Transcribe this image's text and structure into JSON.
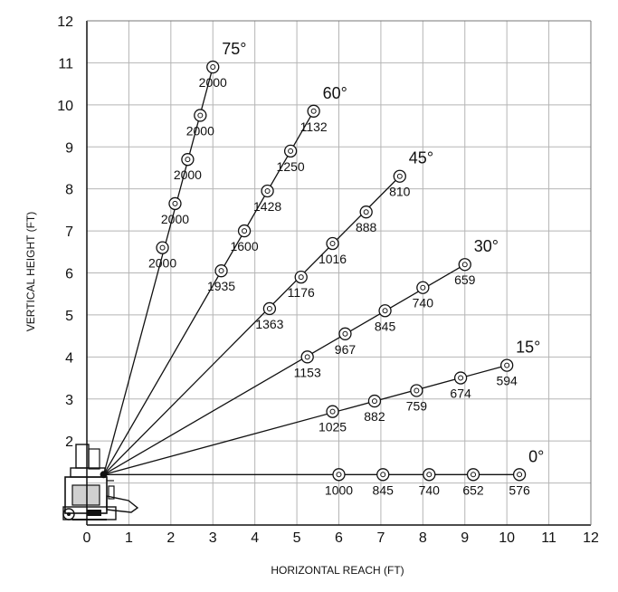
{
  "chart_data": {
    "type": "line",
    "title": "",
    "xlabel": "HORIZONTAL REACH (FT)",
    "ylabel": "VERTICAL HEIGHT (FT)",
    "xlim": [
      0,
      12
    ],
    "ylim": [
      0,
      12
    ],
    "x_ticks": [
      "0",
      "1",
      "2",
      "3",
      "4",
      "5",
      "6",
      "7",
      "8",
      "9",
      "10",
      "11",
      "12"
    ],
    "y_ticks": [
      "2",
      "3",
      "4",
      "5",
      "6",
      "7",
      "8",
      "9",
      "10",
      "11",
      "12"
    ],
    "grid": true,
    "pivot": [
      0.4,
      1.2
    ],
    "colors": {
      "line": "#111111",
      "grid": "#b5b5b5",
      "background": "#ffffff"
    },
    "series": [
      {
        "name": "75°",
        "points": [
          {
            "x": 1.8,
            "y": 6.6,
            "label": "2000"
          },
          {
            "x": 2.1,
            "y": 7.65,
            "label": "2000"
          },
          {
            "x": 2.4,
            "y": 8.7,
            "label": "2000"
          },
          {
            "x": 2.7,
            "y": 9.75,
            "label": "2000"
          },
          {
            "x": 3.0,
            "y": 10.9,
            "label": "2000"
          }
        ]
      },
      {
        "name": "60°",
        "points": [
          {
            "x": 3.2,
            "y": 6.05,
            "label": "1935"
          },
          {
            "x": 3.75,
            "y": 7.0,
            "label": "1600"
          },
          {
            "x": 4.3,
            "y": 7.95,
            "label": "1428"
          },
          {
            "x": 4.85,
            "y": 8.9,
            "label": "1250"
          },
          {
            "x": 5.4,
            "y": 9.85,
            "label": "1132"
          }
        ]
      },
      {
        "name": "45°",
        "points": [
          {
            "x": 4.35,
            "y": 5.15,
            "label": "1363"
          },
          {
            "x": 5.1,
            "y": 5.9,
            "label": "1176"
          },
          {
            "x": 5.85,
            "y": 6.7,
            "label": "1016"
          },
          {
            "x": 6.65,
            "y": 7.45,
            "label": "888"
          },
          {
            "x": 7.45,
            "y": 8.3,
            "label": "810"
          }
        ]
      },
      {
        "name": "30°",
        "points": [
          {
            "x": 5.25,
            "y": 4.0,
            "label": "1153"
          },
          {
            "x": 6.15,
            "y": 4.55,
            "label": "967"
          },
          {
            "x": 7.1,
            "y": 5.1,
            "label": "845"
          },
          {
            "x": 8.0,
            "y": 5.65,
            "label": "740"
          },
          {
            "x": 9.0,
            "y": 6.2,
            "label": "659"
          }
        ]
      },
      {
        "name": "15°",
        "points": [
          {
            "x": 5.85,
            "y": 2.7,
            "label": "1025"
          },
          {
            "x": 6.85,
            "y": 2.95,
            "label": "882"
          },
          {
            "x": 7.85,
            "y": 3.2,
            "label": "759"
          },
          {
            "x": 8.9,
            "y": 3.5,
            "label": "674"
          },
          {
            "x": 10.0,
            "y": 3.8,
            "label": "594"
          }
        ]
      },
      {
        "name": "0°",
        "points": [
          {
            "x": 6.0,
            "y": 1.2,
            "label": "1000"
          },
          {
            "x": 7.05,
            "y": 1.2,
            "label": "845"
          },
          {
            "x": 8.15,
            "y": 1.2,
            "label": "740"
          },
          {
            "x": 9.2,
            "y": 1.2,
            "label": "652"
          },
          {
            "x": 10.3,
            "y": 1.2,
            "label": "576"
          }
        ]
      }
    ]
  }
}
